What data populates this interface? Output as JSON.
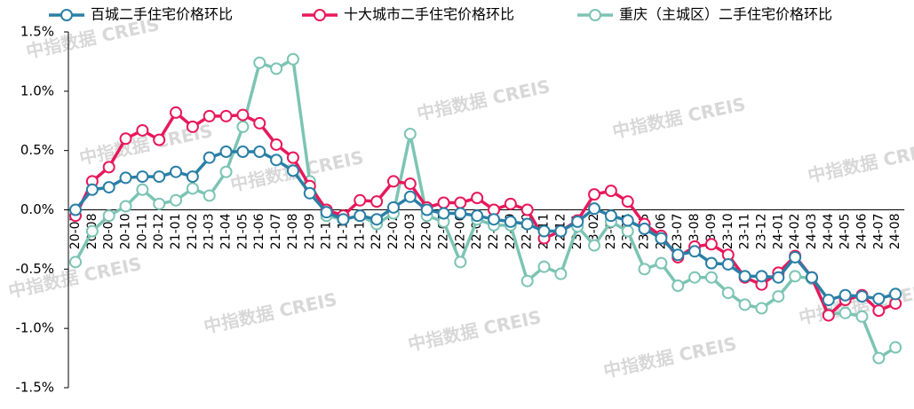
{
  "chart_data": {
    "type": "line",
    "watermark": "中指数据 CREIS",
    "categories": [
      "20-07",
      "20-08",
      "20-09",
      "20-10",
      "20-11",
      "20-12",
      "21-01",
      "21-02",
      "21-03",
      "21-04",
      "21-05",
      "21-06",
      "21-07",
      "21-08",
      "21-09",
      "21-10",
      "21-11",
      "21-12",
      "22-01",
      "22-02",
      "22-03",
      "22-04",
      "22-05",
      "22-06",
      "22-07",
      "22-08",
      "22-09",
      "22-10",
      "22-11",
      "22-12",
      "23-01",
      "23-02",
      "23-03",
      "23-04",
      "23-05",
      "23-06",
      "23-07",
      "23-08",
      "23-09",
      "23-10",
      "23-11",
      "23-12",
      "24-01",
      "24-02",
      "24-03",
      "24-04",
      "24-05",
      "24-06",
      "24-07",
      "24-08"
    ],
    "ylim": [
      -1.5,
      1.5
    ],
    "yticks": [
      {
        "value": -1.5,
        "label": "-1.5%"
      },
      {
        "value": -1.0,
        "label": "-1.0%"
      },
      {
        "value": -0.5,
        "label": "-0.5%"
      },
      {
        "value": 0.0,
        "label": "0.0%"
      },
      {
        "value": 0.5,
        "label": "0.5%"
      },
      {
        "value": 1.0,
        "label": "1.0%"
      },
      {
        "value": 1.5,
        "label": "1.5%"
      }
    ],
    "series": [
      {
        "name": "百城二手住宅价格环比",
        "color": "#2a7fa6",
        "values": [
          0.0,
          0.17,
          0.19,
          0.27,
          0.28,
          0.28,
          0.32,
          0.28,
          0.44,
          0.49,
          0.49,
          0.49,
          0.42,
          0.33,
          0.14,
          -0.02,
          -0.08,
          -0.05,
          -0.08,
          0.02,
          0.11,
          0.0,
          -0.03,
          -0.03,
          -0.05,
          -0.08,
          -0.1,
          -0.12,
          -0.18,
          -0.18,
          -0.1,
          0.01,
          -0.05,
          -0.09,
          -0.16,
          -0.24,
          -0.38,
          -0.35,
          -0.45,
          -0.46,
          -0.56,
          -0.56,
          -0.57,
          -0.4,
          -0.57,
          -0.76,
          -0.72,
          -0.73,
          -0.75,
          -0.71
        ]
      },
      {
        "name": "十大城市二手住宅价格环比",
        "color": "#e8185b",
        "values": [
          -0.05,
          0.24,
          0.36,
          0.6,
          0.67,
          0.59,
          0.82,
          0.7,
          0.79,
          0.79,
          0.8,
          0.73,
          0.55,
          0.44,
          0.2,
          0.0,
          -0.05,
          0.08,
          0.07,
          0.24,
          0.22,
          0.02,
          0.06,
          0.06,
          0.1,
          0.0,
          0.05,
          0.0,
          -0.24,
          -0.18,
          -0.09,
          0.13,
          0.16,
          0.07,
          -0.12,
          -0.22,
          -0.4,
          -0.31,
          -0.29,
          -0.38,
          -0.57,
          -0.63,
          -0.53,
          -0.39,
          -0.57,
          -0.89,
          -0.76,
          -0.72,
          -0.85,
          -0.79
        ]
      },
      {
        "name": "重庆（主城区）二手住宅价格环比",
        "color": "#7cc4b4",
        "values": [
          -0.44,
          -0.18,
          -0.05,
          0.03,
          0.17,
          0.05,
          0.08,
          0.18,
          0.12,
          0.32,
          0.7,
          1.24,
          1.19,
          1.27,
          0.24,
          -0.05,
          -0.08,
          -0.05,
          -0.12,
          -0.03,
          0.64,
          -0.05,
          -0.1,
          -0.44,
          -0.08,
          -0.13,
          -0.13,
          -0.6,
          -0.48,
          -0.54,
          -0.14,
          -0.3,
          -0.1,
          -0.18,
          -0.5,
          -0.45,
          -0.64,
          -0.57,
          -0.57,
          -0.7,
          -0.8,
          -0.83,
          -0.73,
          -0.56,
          -0.58,
          -0.88,
          -0.87,
          -0.9,
          -1.25,
          -1.16
        ]
      }
    ]
  }
}
